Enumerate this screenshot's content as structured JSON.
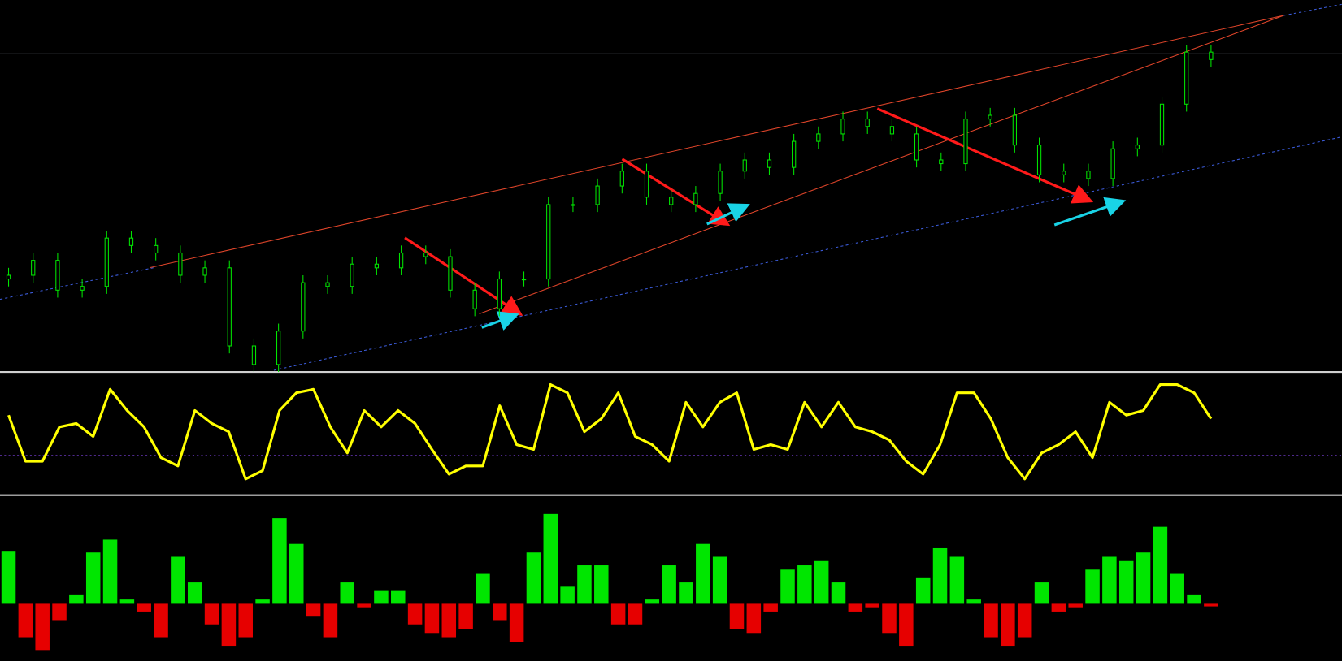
{
  "chart_data": [
    {
      "type": "candlestick",
      "color": "#00e600",
      "ylim": [
        0,
        100
      ],
      "open": [
        25,
        26,
        30,
        22,
        23,
        36,
        34,
        32,
        26,
        28,
        7,
        2,
        11,
        24,
        23,
        29,
        28,
        32,
        31,
        22,
        17,
        25,
        25,
        45,
        45,
        50,
        54,
        47,
        45,
        48,
        54,
        57,
        55,
        62,
        64,
        68,
        66,
        64,
        57,
        56,
        68,
        69,
        61,
        53,
        54,
        52,
        60,
        61,
        72,
        86
      ],
      "high": [
        28,
        32,
        32,
        25,
        38,
        38,
        36,
        34,
        30,
        30,
        9,
        13,
        26,
        26,
        31,
        31,
        34,
        34,
        33,
        24,
        27,
        27,
        47,
        47,
        52,
        56,
        56,
        49,
        50,
        56,
        59,
        59,
        64,
        66,
        70,
        70,
        68,
        66,
        59,
        70,
        71,
        71,
        63,
        56,
        56,
        62,
        63,
        74,
        88,
        88
      ],
      "low": [
        23,
        24,
        20,
        20,
        21,
        32,
        30,
        24,
        24,
        5,
        0,
        0,
        9,
        21,
        21,
        26,
        26,
        29,
        20,
        15,
        15,
        23,
        23,
        43,
        43,
        48,
        45,
        43,
        43,
        46,
        52,
        53,
        53,
        60,
        62,
        64,
        62,
        55,
        54,
        54,
        66,
        59,
        51,
        51,
        50,
        50,
        58,
        59,
        70,
        82
      ],
      "close": [
        26,
        30,
        22,
        23,
        36,
        34,
        32,
        26,
        28,
        7,
        2,
        11,
        24,
        23,
        29,
        28,
        32,
        31,
        22,
        17,
        25,
        25,
        45,
        45,
        50,
        54,
        47,
        45,
        48,
        54,
        57,
        55,
        62,
        64,
        68,
        66,
        64,
        57,
        56,
        68,
        69,
        61,
        53,
        54,
        52,
        60,
        61,
        72,
        86,
        84
      ]
    },
    {
      "type": "line",
      "color": "#ffff00",
      "ylim": [
        0,
        100
      ],
      "reference_line": 33,
      "values": [
        67,
        28,
        28,
        57,
        60,
        49,
        89,
        71,
        57,
        31,
        24,
        71,
        60,
        53,
        13,
        20,
        71,
        86,
        89,
        57,
        35,
        71,
        57,
        71,
        60,
        38,
        17,
        24,
        24,
        75,
        42,
        38,
        93,
        86,
        53,
        64,
        86,
        49,
        42,
        28,
        78,
        57,
        78,
        86,
        38,
        42,
        38,
        78,
        57,
        78,
        57,
        53,
        46,
        28,
        17,
        42,
        86,
        86,
        64,
        31,
        13,
        35,
        42,
        53,
        31,
        78,
        67,
        71,
        93,
        93,
        86,
        64
      ]
    },
    {
      "type": "bar",
      "up_color": "#00e600",
      "down_color": "#e60000",
      "ylim": [
        -67,
        124
      ],
      "values": [
        61,
        -40,
        -55,
        -20,
        10,
        60,
        75,
        5,
        -10,
        -40,
        55,
        25,
        -25,
        -50,
        -40,
        5,
        100,
        70,
        -15,
        -40,
        25,
        -5,
        15,
        15,
        -25,
        -35,
        -40,
        -30,
        35,
        -20,
        -45,
        60,
        105,
        20,
        45,
        45,
        -25,
        -25,
        5,
        45,
        25,
        70,
        55,
        -30,
        -35,
        -10,
        40,
        45,
        50,
        25,
        -10,
        -5,
        -35,
        -50,
        30,
        65,
        55,
        5,
        -40,
        -50,
        -40,
        25,
        -10,
        -5,
        40,
        55,
        50,
        60,
        90,
        35,
        10,
        -3
      ]
    }
  ]
}
